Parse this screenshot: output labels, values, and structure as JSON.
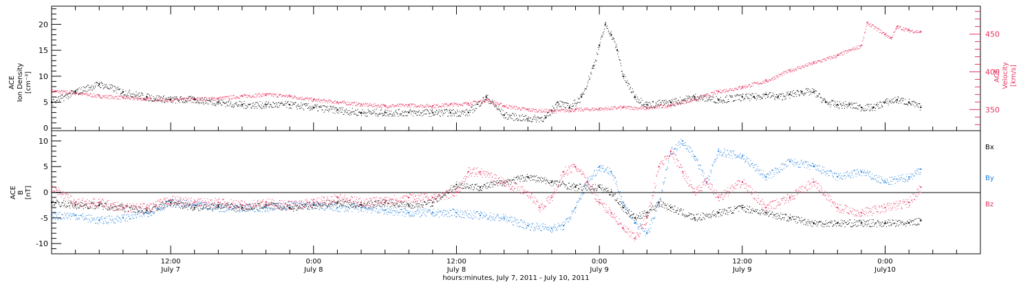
{
  "colors": {
    "black": "#000000",
    "pink": "#e8335f",
    "blue": "#1f7fdc"
  },
  "time_axis": {
    "title": "hours:minutes, July  7, 2011 - July 10, 2011",
    "tick_labels": [
      {
        "time": "12:00",
        "date": "July 7",
        "hour": 12
      },
      {
        "time": "0:00",
        "date": "July 8",
        "hour": 24
      },
      {
        "time": "12:00",
        "date": "July 8",
        "hour": 36
      },
      {
        "time": "0:00",
        "date": "July 9",
        "hour": 48
      },
      {
        "time": "12:00",
        "date": "July 9",
        "hour": 60
      },
      {
        "time": "0:00",
        "date": "July10",
        "hour": 72
      }
    ],
    "range_hours": [
      2,
      80
    ],
    "data_end_hour": 75
  },
  "panel1": {
    "left_label": [
      "ACE",
      "Ion Density",
      "[cm⁻³]"
    ],
    "right_label": [
      "ACE",
      "Velocity",
      "[km/s]"
    ],
    "left_ticks": [
      "0",
      "5",
      "10",
      "15",
      "20"
    ],
    "right_ticks": [
      "350",
      "400",
      "450"
    ]
  },
  "panel2": {
    "left_label": [
      "ACE",
      "B",
      "[nT]"
    ],
    "ticks": [
      "-10",
      "-5",
      "0",
      "5",
      "10"
    ],
    "legend": [
      "Bx",
      "By",
      "Bz"
    ]
  },
  "chart_data": [
    {
      "type": "scatter",
      "title": "",
      "xlabel": "hours:minutes, July  7, 2011 - July 10, 2011",
      "ylabel": "ACE Ion Density [cm⁻³]",
      "ylabel_right": "ACE Velocity [km/s]",
      "ylim": [
        -0.5,
        23.5
      ],
      "ylim_right": [
        322,
        487
      ],
      "series": [
        {
          "name": "Ion Density",
          "axis": "left",
          "color": "#000000",
          "x": [
            2,
            4,
            6,
            8,
            10,
            12,
            14,
            16,
            18,
            20,
            22,
            24,
            26,
            28,
            30,
            32,
            34,
            35.5,
            37,
            38.5,
            40,
            42,
            43.5,
            44.5,
            45.5,
            46.5,
            47.5,
            48,
            48.5,
            49,
            49.5,
            50,
            51,
            52,
            54,
            56,
            58,
            60,
            61,
            62,
            63,
            64,
            65,
            66,
            67,
            68,
            69,
            70,
            71,
            72,
            73,
            74,
            75
          ],
          "y": [
            5,
            7,
            8.5,
            7,
            6,
            5.5,
            5.5,
            5,
            4.5,
            4.5,
            4.5,
            4,
            3.5,
            3,
            3,
            3,
            3,
            3,
            3,
            6,
            2.5,
            1.8,
            2,
            5,
            4,
            6,
            12,
            16,
            20,
            18,
            15,
            10,
            6,
            4.5,
            5,
            6,
            5.5,
            6,
            6,
            6.5,
            6,
            6.5,
            7,
            7,
            5,
            4.5,
            4.5,
            4,
            4,
            5,
            5.5,
            5,
            4
          ]
        },
        {
          "name": "Velocity",
          "axis": "right",
          "color": "#e8335f",
          "x": [
            2,
            4,
            6,
            8,
            10,
            12,
            14,
            16,
            18,
            20,
            22,
            24,
            26,
            28,
            30,
            32,
            34,
            35.5,
            37,
            38.5,
            40,
            42,
            44,
            46,
            48,
            50,
            52,
            54,
            56,
            58,
            60,
            62,
            64,
            66,
            68,
            70,
            70.5,
            72,
            72.5,
            73,
            74,
            75
          ],
          "y": [
            375,
            372,
            368,
            366,
            364,
            363,
            364,
            365,
            368,
            370,
            368,
            363,
            360,
            357,
            355,
            356,
            355,
            357,
            358,
            363,
            355,
            350,
            348,
            350,
            351,
            353,
            352,
            356,
            364,
            374,
            380,
            388,
            402,
            412,
            422,
            435,
            465,
            450,
            445,
            460,
            455,
            453
          ]
        }
      ]
    },
    {
      "type": "scatter",
      "title": "",
      "xlabel": "hours:minutes, July  7, 2011 - July 10, 2011",
      "ylabel": "ACE B [nT]",
      "ylim": [
        -12,
        12
      ],
      "series": [
        {
          "name": "Bx",
          "color": "#000000",
          "x": [
            2,
            4,
            6,
            8,
            10,
            12,
            14,
            16,
            18,
            20,
            22,
            24,
            26,
            28,
            30,
            32,
            34,
            36,
            38,
            40,
            42,
            44,
            46,
            48,
            49,
            50,
            51,
            52,
            53,
            54,
            56,
            58,
            60,
            62,
            64,
            66,
            68,
            70,
            72,
            74,
            75
          ],
          "y": [
            -2,
            -2.5,
            -2.5,
            -3,
            -3.5,
            -2,
            -3,
            -2.5,
            -3,
            -2.5,
            -3,
            -2.5,
            -2,
            -2.5,
            -2,
            -2.5,
            -2,
            1.5,
            1,
            2,
            3,
            2,
            1,
            1,
            0,
            -3,
            -5,
            -4,
            -2,
            -3,
            -5,
            -4,
            -3,
            -4,
            -5,
            -6,
            -6,
            -6,
            -6,
            -6,
            -5.5
          ]
        },
        {
          "name": "By",
          "color": "#1f7fdc",
          "x": [
            2,
            4,
            6,
            8,
            10,
            12,
            14,
            16,
            18,
            20,
            22,
            24,
            26,
            28,
            30,
            32,
            34,
            36,
            38,
            40,
            42,
            44,
            45,
            46,
            47,
            48,
            49,
            50,
            51,
            52,
            53,
            54,
            55,
            56,
            57,
            58,
            60,
            62,
            64,
            66,
            68,
            70,
            72,
            74,
            75
          ],
          "y": [
            -4.5,
            -4.5,
            -5.5,
            -5,
            -4,
            -2,
            -2.5,
            -3,
            -3,
            -3,
            -2.5,
            -2.5,
            -3,
            -3,
            -3.5,
            -4,
            -4,
            -4,
            -4.5,
            -5,
            -6.5,
            -7,
            -6.5,
            -3,
            2,
            5,
            4,
            -2,
            -6,
            -8,
            -2,
            8,
            10,
            7,
            2,
            8,
            7,
            3,
            6,
            5,
            3,
            4,
            2,
            3,
            4.5
          ]
        },
        {
          "name": "Bz",
          "color": "#e8335f",
          "x": [
            2,
            4,
            6,
            8,
            10,
            12,
            14,
            16,
            18,
            20,
            22,
            24,
            26,
            28,
            30,
            32,
            34,
            36,
            37,
            38,
            40,
            42,
            43,
            44,
            45,
            46,
            47,
            48,
            49,
            50,
            51,
            52,
            53,
            54,
            55,
            56,
            57,
            58,
            60,
            62,
            64,
            66,
            68,
            70,
            72,
            74,
            75
          ],
          "y": [
            1,
            -2,
            -2,
            -3,
            -3,
            -1.5,
            -2,
            -2,
            -2.5,
            -2,
            -2.5,
            -2,
            -1,
            -2,
            -1.5,
            -1,
            -1,
            0,
            4,
            4,
            2,
            0,
            -3,
            -1,
            4,
            5,
            2,
            -2,
            -4,
            -7,
            -9,
            -5,
            5,
            8,
            4,
            0,
            2,
            -1,
            2,
            -3,
            -1,
            2,
            -3,
            -4,
            -3,
            -2,
            1
          ]
        }
      ]
    }
  ]
}
